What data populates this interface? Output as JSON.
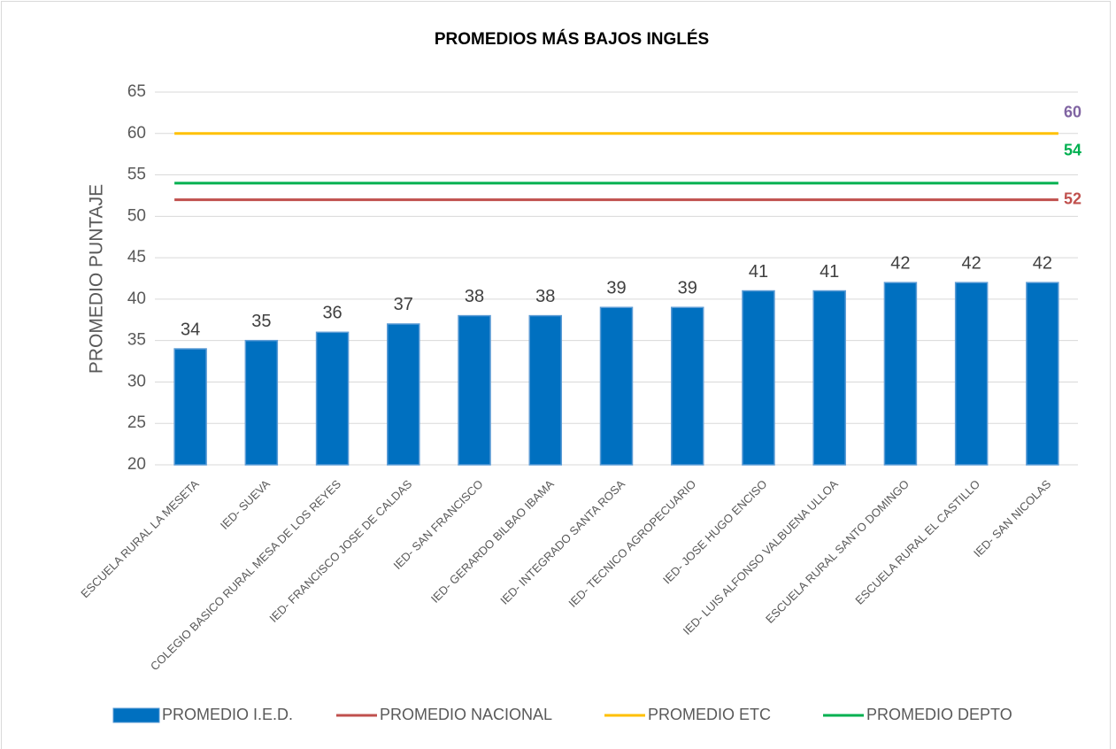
{
  "chart_data": {
    "type": "bar",
    "title": "PROMEDIOS MÁS BAJOS INGLÉS",
    "y_label": "PROMEDIO PUNTAJE",
    "categories": [
      "ESCUELA RURAL  LA MESETA",
      "IED- SUEVA",
      "COLEGIO BASICO RURAL MESA DE LOS REYES",
      "IED- FRANCISCO JOSE DE CALDAS",
      "IED- SAN FRANCISCO",
      "IED- GERARDO BILBAO IBAMA",
      "IED- INTEGRADO SANTA ROSA",
      "IED- TECNICO AGROPECUARIO",
      "IED- JOSE HUGO ENCISO",
      "IED- LUIS ALFONSO VALBUENA ULLOA",
      "ESCUELA RURAL SANTO DOMINGO",
      "ESCUELA RURAL EL CASTILLO",
      "IED- SAN NICOLAS"
    ],
    "series": [
      {
        "name": "PROMEDIO I.E.D.",
        "type": "bar",
        "color": "#0070c0",
        "values": [
          34,
          35,
          36,
          37,
          38,
          38,
          39,
          39,
          41,
          41,
          42,
          42,
          42
        ]
      },
      {
        "name": "PROMEDIO NACIONAL",
        "type": "line",
        "color": "#c0504d",
        "label_color": "#c0504d",
        "values": [
          52,
          52,
          52,
          52,
          52,
          52,
          52,
          52,
          52,
          52,
          52,
          52,
          52
        ]
      },
      {
        "name": "PROMEDIO ETC",
        "type": "line",
        "color": "#ffc000",
        "label_color": "#8064a2",
        "values": [
          60,
          60,
          60,
          60,
          60,
          60,
          60,
          60,
          60,
          60,
          60,
          60,
          60
        ]
      },
      {
        "name": "PROMEDIO DEPTO",
        "type": "line",
        "color": "#00b050",
        "label_color": "#00b050",
        "values": [
          54,
          54,
          54,
          54,
          54,
          54,
          54,
          54,
          54,
          54,
          54,
          54,
          54
        ]
      }
    ],
    "ylim": [
      20,
      65
    ],
    "yticks": [
      20,
      25,
      30,
      35,
      40,
      45,
      50,
      55,
      60,
      65
    ],
    "grid": true,
    "legend": "bottom"
  }
}
